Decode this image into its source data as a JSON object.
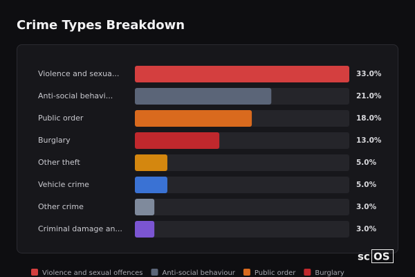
{
  "chart_data": {
    "type": "bar",
    "orientation": "horizontal",
    "title": "Crime Types Breakdown",
    "categories": [
      "Violence and sexua...",
      "Anti-social behavi...",
      "Public order",
      "Burglary",
      "Other theft",
      "Vehicle crime",
      "Other crime",
      "Criminal damage an..."
    ],
    "values": [
      33,
      21,
      18,
      13,
      5,
      5,
      3,
      3
    ],
    "value_labels": [
      "33.0%",
      "21.0%",
      "18.0%",
      "13.0%",
      "5.0%",
      "5.0%",
      "3.0%",
      "3.0%"
    ],
    "colors": [
      "#d43f3f",
      "#5b6578",
      "#d96a1e",
      "#c0282d",
      "#d4870f",
      "#3a72d4",
      "#7f8a9c",
      "#7b55d2"
    ],
    "legend": [
      {
        "name": "Violence and sexual offences",
        "color": "#d43f3f"
      },
      {
        "name": "Anti-social behaviour",
        "color": "#5b6578"
      },
      {
        "name": "Public order",
        "color": "#d96a1e"
      },
      {
        "name": "Burglary",
        "color": "#c0282d"
      }
    ]
  },
  "logo": {
    "prefix": "sc",
    "boxed": "OS"
  }
}
